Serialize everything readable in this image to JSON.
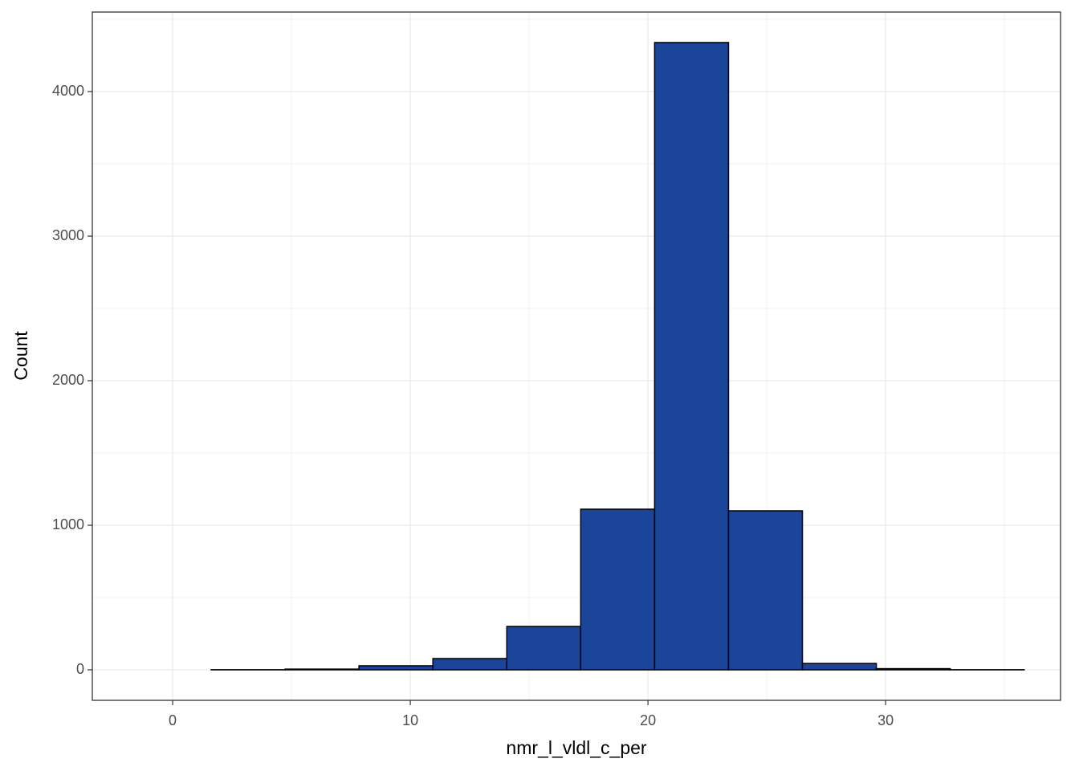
{
  "chart_data": {
    "type": "histogram",
    "x_label": "nmr_l_vldl_c_per",
    "y_label": "Count",
    "bins": [
      -1.49,
      1.62,
      4.73,
      7.84,
      10.95,
      14.06,
      17.17,
      20.28,
      23.39,
      26.5,
      29.61,
      32.72,
      35.83
    ],
    "counts": [
      0,
      1,
      5,
      28,
      78,
      300,
      1111,
      4339,
      1100,
      44,
      8,
      1
    ],
    "color": "#1a4599",
    "edge_color": "#000000",
    "xlim": [
      -3.38,
      37.36
    ],
    "ylim": [
      -211,
      4550
    ],
    "xticks": [
      0,
      10,
      20,
      30
    ],
    "yticks": [
      0,
      1000,
      2000,
      3000,
      4000
    ],
    "grid": true
  }
}
